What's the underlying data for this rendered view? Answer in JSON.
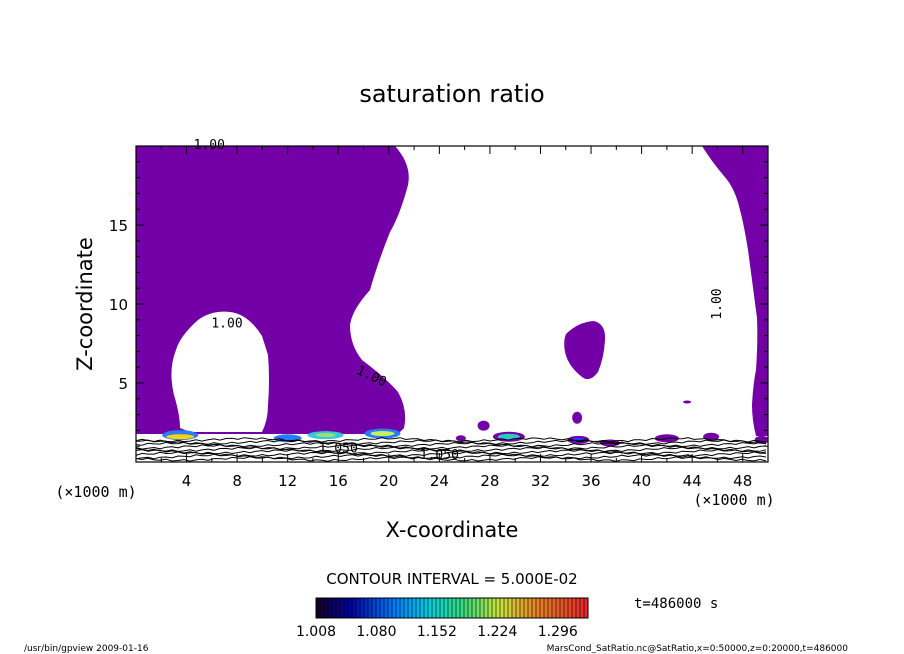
{
  "chart_data": {
    "type": "heatmap",
    "title": "saturation ratio",
    "xlabel": "X-coordinate",
    "ylabel": "Z-coordinate",
    "x_unit": "(×1000 m)",
    "y_unit": "(×1000 m)",
    "xlim": [
      0,
      50
    ],
    "ylim": [
      0,
      20
    ],
    "x_ticks": [
      4,
      8,
      12,
      16,
      20,
      24,
      28,
      32,
      36,
      40,
      44,
      48
    ],
    "y_ticks": [
      5,
      10,
      15
    ],
    "contour_interval_text": "CONTOUR INTERVAL = 5.000E-02",
    "contour_labels": [
      {
        "text": "1.00",
        "x": 5.8,
        "z": 19.8
      },
      {
        "text": "1.00",
        "x": 7.2,
        "z": 8.5
      },
      {
        "text": "1.00",
        "x": 18.5,
        "z": 5.2
      },
      {
        "text": "1.00",
        "x": 46.3,
        "z": 10.0
      },
      {
        "text": "1.050",
        "x": 16.0,
        "z": 0.6
      },
      {
        "text": "1.050",
        "x": 24.0,
        "z": 0.2
      }
    ],
    "fill_color": "#7300a6",
    "colorbar": {
      "tick_labels": [
        "1.008",
        "1.080",
        "1.152",
        "1.224",
        "1.296"
      ],
      "min": 1.008,
      "max": 1.332
    },
    "time_label": "t=486000 s"
  },
  "footer": {
    "left": "/usr/bin/gpview   2009-01-16",
    "right": "MarsCond_SatRatio.nc@SatRatio,x=0:50000,z=0:20000,t=486000"
  }
}
